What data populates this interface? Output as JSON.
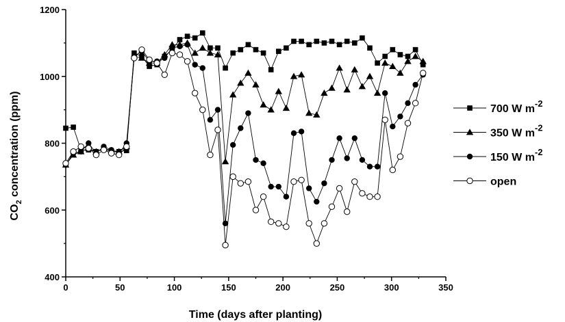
{
  "chart_data": {
    "type": "line",
    "title": "",
    "xlabel": "Time (days after planting)",
    "ylabel": {
      "prefix": "CO",
      "subscript": "2",
      "suffix": " concentration (ppm)"
    },
    "xlim": [
      0,
      350
    ],
    "ylim": [
      400,
      1200
    ],
    "xticks": [
      0,
      50,
      100,
      150,
      200,
      250,
      300,
      350
    ],
    "yticks": [
      400,
      600,
      800,
      1000,
      1200
    ],
    "grid": false,
    "legend_position": "right",
    "series": [
      {
        "name": "700 W m",
        "name_superscript": "-2",
        "marker": "square",
        "points": [
          [
            0,
            845
          ],
          [
            7,
            848
          ],
          [
            14,
            780
          ],
          [
            21,
            780
          ],
          [
            28,
            775
          ],
          [
            35,
            783
          ],
          [
            42,
            775
          ],
          [
            49,
            775
          ],
          [
            56,
            778
          ],
          [
            63,
            1070
          ],
          [
            70,
            1060
          ],
          [
            77,
            1030
          ],
          [
            84,
            1035
          ],
          [
            91,
            1060
          ],
          [
            98,
            1080
          ],
          [
            105,
            1110
          ],
          [
            112,
            1120
          ],
          [
            119,
            1115
          ],
          [
            126,
            1130
          ],
          [
            133,
            1085
          ],
          [
            140,
            1085
          ],
          [
            147,
            1025
          ],
          [
            154,
            1070
          ],
          [
            161,
            1080
          ],
          [
            168,
            1095
          ],
          [
            175,
            1080
          ],
          [
            182,
            1070
          ],
          [
            189,
            1020
          ],
          [
            196,
            1075
          ],
          [
            203,
            1085
          ],
          [
            210,
            1105
          ],
          [
            217,
            1105
          ],
          [
            224,
            1095
          ],
          [
            231,
            1105
          ],
          [
            238,
            1100
          ],
          [
            245,
            1105
          ],
          [
            252,
            1095
          ],
          [
            259,
            1105
          ],
          [
            266,
            1100
          ],
          [
            273,
            1115
          ],
          [
            280,
            1085
          ],
          [
            287,
            1040
          ],
          [
            294,
            1060
          ],
          [
            301,
            1080
          ],
          [
            308,
            1065
          ],
          [
            315,
            1060
          ],
          [
            322,
            1080
          ],
          [
            329,
            1035
          ]
        ]
      },
      {
        "name": "350 W m",
        "name_superscript": "-2",
        "marker": "triangle",
        "points": [
          [
            0,
            735
          ],
          [
            7,
            765
          ],
          [
            14,
            775
          ],
          [
            21,
            785
          ],
          [
            28,
            775
          ],
          [
            35,
            785
          ],
          [
            42,
            778
          ],
          [
            49,
            775
          ],
          [
            56,
            790
          ],
          [
            63,
            1060
          ],
          [
            70,
            1055
          ],
          [
            77,
            1040
          ],
          [
            84,
            1040
          ],
          [
            91,
            1065
          ],
          [
            98,
            1095
          ],
          [
            105,
            1095
          ],
          [
            112,
            1100
          ],
          [
            119,
            1070
          ],
          [
            126,
            1085
          ],
          [
            133,
            1070
          ],
          [
            140,
            1065
          ],
          [
            147,
            745
          ],
          [
            154,
            945
          ],
          [
            161,
            980
          ],
          [
            168,
            1010
          ],
          [
            175,
            975
          ],
          [
            182,
            915
          ],
          [
            189,
            900
          ],
          [
            196,
            955
          ],
          [
            203,
            905
          ],
          [
            210,
            1000
          ],
          [
            217,
            1005
          ],
          [
            224,
            890
          ],
          [
            231,
            885
          ],
          [
            238,
            950
          ],
          [
            245,
            965
          ],
          [
            252,
            1025
          ],
          [
            259,
            960
          ],
          [
            266,
            1020
          ],
          [
            273,
            970
          ],
          [
            280,
            1000
          ],
          [
            287,
            950
          ],
          [
            294,
            1040
          ],
          [
            301,
            1030
          ],
          [
            308,
            1010
          ],
          [
            315,
            1045
          ],
          [
            322,
            1060
          ],
          [
            329,
            1045
          ]
        ]
      },
      {
        "name": "150 W m",
        "name_superscript": "-2",
        "marker": "circle-filled",
        "points": [
          [
            0,
            735
          ],
          [
            7,
            770
          ],
          [
            14,
            775
          ],
          [
            21,
            800
          ],
          [
            28,
            770
          ],
          [
            35,
            790
          ],
          [
            42,
            780
          ],
          [
            49,
            770
          ],
          [
            56,
            800
          ],
          [
            63,
            1060
          ],
          [
            70,
            1075
          ],
          [
            77,
            1045
          ],
          [
            84,
            1045
          ],
          [
            91,
            1055
          ],
          [
            98,
            1085
          ],
          [
            105,
            1090
          ],
          [
            112,
            1095
          ],
          [
            119,
            1035
          ],
          [
            126,
            1025
          ],
          [
            133,
            870
          ],
          [
            140,
            900
          ],
          [
            147,
            560
          ],
          [
            154,
            795
          ],
          [
            161,
            845
          ],
          [
            168,
            890
          ],
          [
            175,
            750
          ],
          [
            182,
            740
          ],
          [
            189,
            670
          ],
          [
            196,
            670
          ],
          [
            203,
            640
          ],
          [
            210,
            830
          ],
          [
            217,
            835
          ],
          [
            224,
            665
          ],
          [
            231,
            625
          ],
          [
            238,
            680
          ],
          [
            245,
            750
          ],
          [
            252,
            815
          ],
          [
            259,
            755
          ],
          [
            266,
            815
          ],
          [
            273,
            750
          ],
          [
            280,
            730
          ],
          [
            287,
            730
          ],
          [
            294,
            950
          ],
          [
            301,
            850
          ],
          [
            308,
            880
          ],
          [
            315,
            920
          ],
          [
            322,
            975
          ],
          [
            329,
            1005
          ]
        ]
      },
      {
        "name": "open",
        "name_superscript": "",
        "marker": "circle-open",
        "points": [
          [
            0,
            740
          ],
          [
            7,
            775
          ],
          [
            14,
            790
          ],
          [
            21,
            785
          ],
          [
            28,
            765
          ],
          [
            35,
            780
          ],
          [
            42,
            770
          ],
          [
            49,
            765
          ],
          [
            56,
            790
          ],
          [
            63,
            1055
          ],
          [
            70,
            1080
          ],
          [
            77,
            1050
          ],
          [
            84,
            1040
          ],
          [
            91,
            1005
          ],
          [
            98,
            1070
          ],
          [
            105,
            1065
          ],
          [
            112,
            1045
          ],
          [
            119,
            950
          ],
          [
            126,
            900
          ],
          [
            133,
            765
          ],
          [
            140,
            840
          ],
          [
            147,
            495
          ],
          [
            154,
            700
          ],
          [
            161,
            680
          ],
          [
            168,
            685
          ],
          [
            175,
            600
          ],
          [
            182,
            640
          ],
          [
            189,
            565
          ],
          [
            196,
            560
          ],
          [
            203,
            550
          ],
          [
            210,
            685
          ],
          [
            217,
            690
          ],
          [
            224,
            560
          ],
          [
            231,
            500
          ],
          [
            238,
            560
          ],
          [
            245,
            610
          ],
          [
            252,
            665
          ],
          [
            259,
            595
          ],
          [
            266,
            685
          ],
          [
            273,
            650
          ],
          [
            280,
            640
          ],
          [
            287,
            640
          ],
          [
            294,
            870
          ],
          [
            301,
            720
          ],
          [
            308,
            760
          ],
          [
            315,
            860
          ],
          [
            322,
            920
          ],
          [
            329,
            1010
          ]
        ]
      }
    ]
  }
}
